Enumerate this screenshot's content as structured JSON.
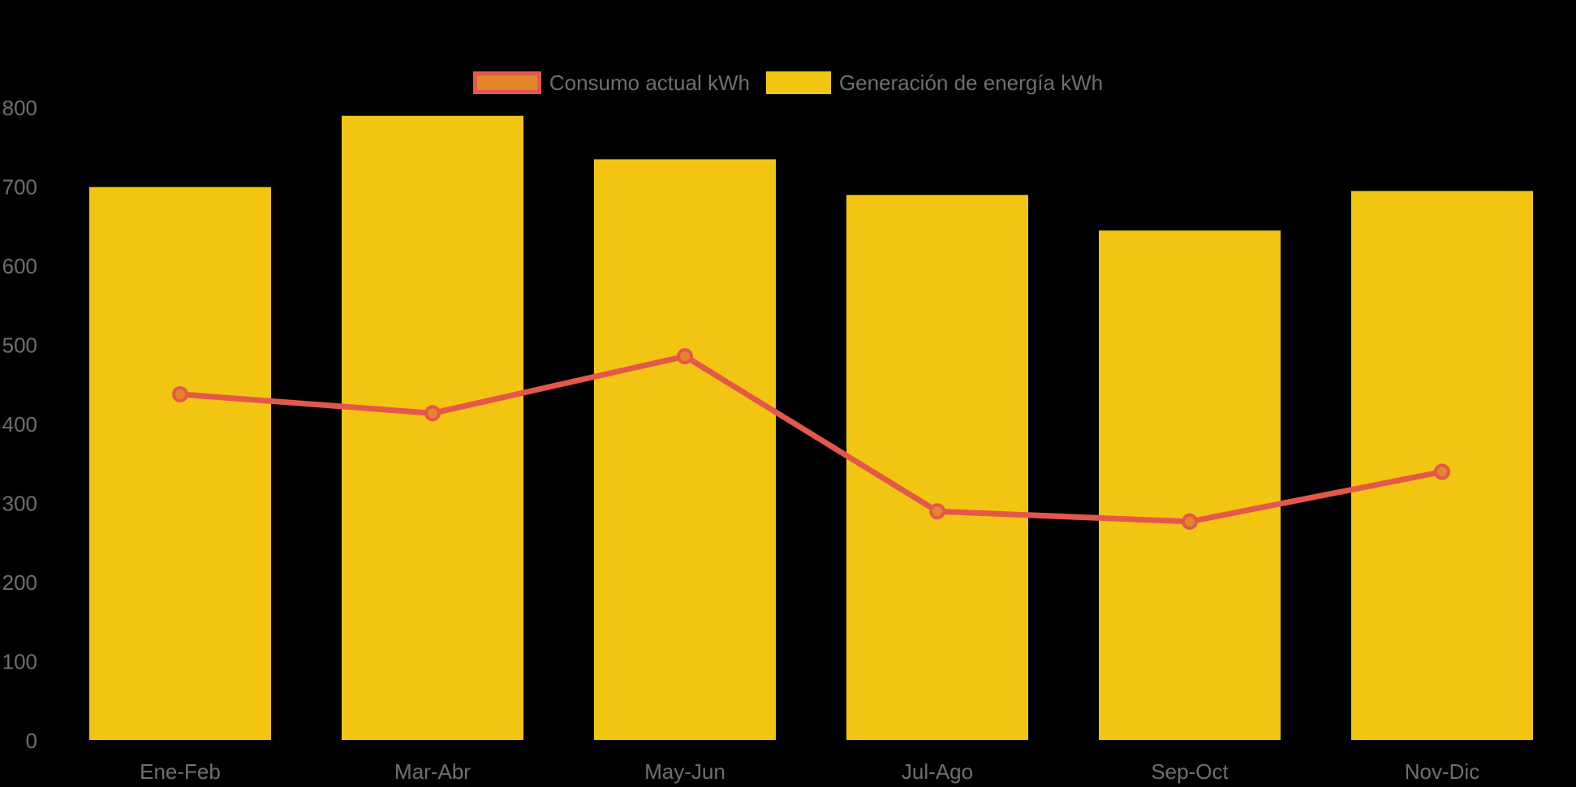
{
  "page": {
    "background": "#000000"
  },
  "legend": {
    "text_color": "#6F6F6F",
    "items": [
      {
        "label": "Consumo actual kWh",
        "swatch_fill": "#E2862E",
        "swatch_border": "#E4584B",
        "swatch_width": 84,
        "swatch_height": 28,
        "border_width": 5
      },
      {
        "label": "Generación de energía kWh",
        "swatch_fill": "#F2C512",
        "swatch_border": null,
        "swatch_width": 80,
        "swatch_height": 28,
        "border_width": 0
      }
    ]
  },
  "chart_data": {
    "type": "bar",
    "title": "",
    "xlabel": "",
    "ylabel": "",
    "categories": [
      "Ene-Feb",
      "Mar-Abr",
      "May-Jun",
      "Jul-Ago",
      "Sep-Oct",
      "Nov-Dic"
    ],
    "series": [
      {
        "name": "Generación de energía kWh",
        "type": "bar",
        "color": "#F2C512",
        "values": [
          700,
          790,
          735,
          690,
          645,
          695
        ]
      },
      {
        "name": "Consumo actual kWh",
        "type": "line",
        "color": "#E4584B",
        "marker_fill": "#E2862E",
        "line_width": 7,
        "marker_radius": 8,
        "marker_stroke_width": 4,
        "values": [
          438,
          414,
          486,
          290,
          277,
          340
        ]
      }
    ],
    "ylim": [
      0,
      800
    ],
    "yticks": [
      0,
      100,
      200,
      300,
      400,
      500,
      600,
      700,
      800
    ],
    "grid": false,
    "legend_position": "top-center",
    "axis_text_color": "#6F6F6F",
    "axis_font_size": 26,
    "background": "#000000"
  }
}
